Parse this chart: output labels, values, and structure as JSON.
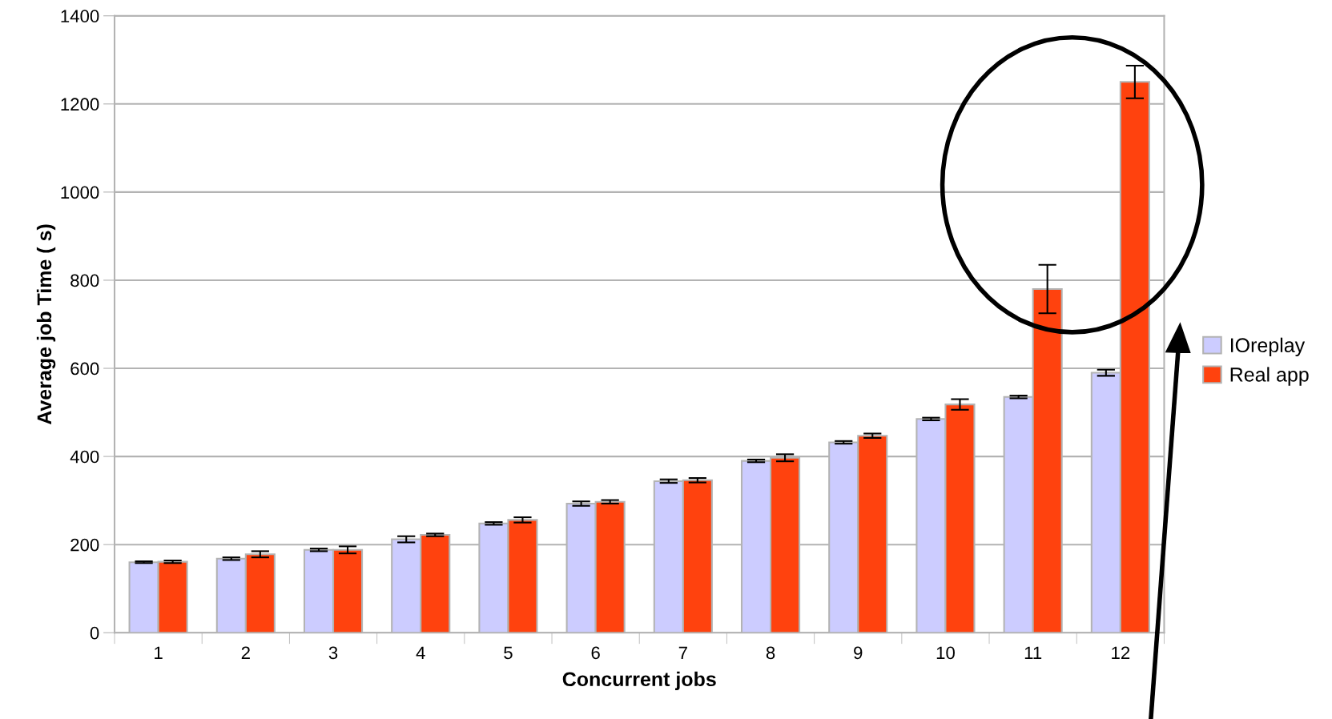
{
  "chart_data": {
    "type": "bar",
    "xlabel": "Concurrent jobs",
    "ylabel": "Average job Time ( s)",
    "categories": [
      "1",
      "2",
      "3",
      "4",
      "5",
      "6",
      "7",
      "8",
      "9",
      "10",
      "11",
      "12"
    ],
    "series": [
      {
        "name": "IOreplay",
        "color": "#ccccff",
        "values": [
          160,
          168,
          188,
          212,
          248,
          293,
          344,
          390,
          432,
          485,
          535,
          590
        ],
        "errors": [
          2,
          3,
          3,
          7,
          3,
          5,
          4,
          3,
          3,
          3,
          3,
          7
        ]
      },
      {
        "name": "Real app",
        "color": "#ff420e",
        "values": [
          161,
          178,
          188,
          222,
          256,
          297,
          346,
          397,
          447,
          518,
          780,
          1250
        ],
        "errors": [
          3,
          7,
          8,
          3,
          6,
          4,
          5,
          8,
          5,
          12,
          55,
          37
        ]
      }
    ],
    "ylim": [
      0,
      1400
    ],
    "yticks": [
      0,
      200,
      400,
      600,
      800,
      1000,
      1200,
      1400
    ],
    "grid": "y",
    "legend": "right"
  }
}
